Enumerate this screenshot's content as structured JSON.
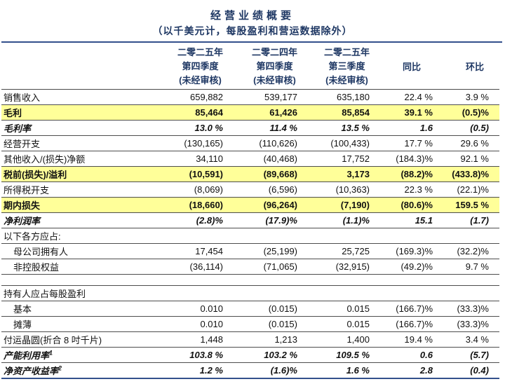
{
  "header": {
    "title": "经营业绩概要",
    "subtitle": "（以千美元计，每股盈利和营运数据除外）"
  },
  "colors": {
    "accent_navy_text": "#1F3864",
    "accent_navy_rule": "#33508C",
    "highlight_yellow": "#FFFF99"
  },
  "table": {
    "columns": [
      {
        "lines": [
          "二零二五年",
          "第四季度",
          "(未经审核)"
        ]
      },
      {
        "lines": [
          "二零二四年",
          "第四季度",
          "(未经审核)"
        ]
      },
      {
        "lines": [
          "二零二五年",
          "第三季度",
          "(未经审核)"
        ]
      },
      {
        "label": "同比"
      },
      {
        "label": "环比"
      }
    ],
    "rows": [
      {
        "label": "销售收入",
        "style": "normal",
        "values": [
          "659,882",
          "539,177",
          "635,180",
          "22.4 %",
          "3.9 %"
        ]
      },
      {
        "label": "毛利",
        "style": "highlight",
        "values": [
          "85,464",
          "61,426",
          "85,854",
          "39.1 %",
          "(0.5)%"
        ]
      },
      {
        "label": "毛利率",
        "style": "rate",
        "values": [
          "13.0 %",
          "11.4 %",
          "13.5 %",
          "1.6",
          "(0.5)"
        ]
      },
      {
        "label": "经营开支",
        "style": "normal",
        "values": [
          "(130,165)",
          "(110,626)",
          "(100,433)",
          "17.7 %",
          "29.6 %"
        ]
      },
      {
        "label": "其他收入/(损失)净额",
        "style": "normal",
        "values": [
          "34,110",
          "(40,468)",
          "17,752",
          "(184.3)%",
          "92.1 %"
        ]
      },
      {
        "label": "税前(损失)/溢利",
        "style": "highlight",
        "values": [
          "(10,591)",
          "(89,668)",
          "3,173",
          "(88.2)%",
          "(433.8)%"
        ]
      },
      {
        "label": "所得税开支",
        "style": "normal",
        "values": [
          "(8,069)",
          "(6,596)",
          "(10,363)",
          "22.3 %",
          "(22.1)%"
        ]
      },
      {
        "label": "期内损失",
        "style": "highlight",
        "values": [
          "(18,660)",
          "(96,264)",
          "(7,190)",
          "(80.6)%",
          "159.5 %"
        ]
      },
      {
        "label": "净利润率",
        "style": "rate",
        "values": [
          "(2.8)%",
          "(17.9)%",
          "(1.1)%",
          "15.1",
          "(1.7)"
        ]
      },
      {
        "label": "以下各方应占:",
        "style": "section",
        "values": [
          "",
          "",
          "",
          "",
          ""
        ]
      },
      {
        "label": "母公司拥有人",
        "style": "normal",
        "indent": true,
        "values": [
          "17,454",
          "(25,199)",
          "25,725",
          "(169.3)%",
          "(32.2)%"
        ]
      },
      {
        "label": "非控股权益",
        "style": "normal",
        "indent": true,
        "values": [
          "(36,114)",
          "(71,065)",
          "(32,915)",
          "(49.2)%",
          "9.7 %"
        ]
      },
      {
        "style": "gap"
      },
      {
        "label": "持有人应占每股盈利",
        "style": "section",
        "values": [
          "",
          "",
          "",
          "",
          ""
        ]
      },
      {
        "label": "基本",
        "style": "normal",
        "indent": true,
        "values": [
          "0.010",
          "(0.015)",
          "0.015",
          "(166.7)%",
          "(33.3)%"
        ]
      },
      {
        "label": "摊薄",
        "style": "normal",
        "indent": true,
        "values": [
          "0.010",
          "(0.015)",
          "0.015",
          "(166.7)%",
          "(33.3)%"
        ]
      },
      {
        "label": "付运晶圆(折合 8 吋千片)",
        "style": "normal",
        "values": [
          "1,448",
          "1,213",
          "1,400",
          "19.4 %",
          "3.4 %"
        ]
      },
      {
        "label": "产能利用率",
        "sup": "1",
        "style": "rate",
        "values": [
          "103.8 %",
          "103.2 %",
          "109.5 %",
          "0.6",
          "(5.7)"
        ]
      },
      {
        "label": "净资产收益率",
        "sup": "2",
        "style": "rate",
        "values": [
          "1.2 %",
          "(1.6)%",
          "1.6 %",
          "2.8",
          "(0.4)"
        ]
      }
    ]
  }
}
